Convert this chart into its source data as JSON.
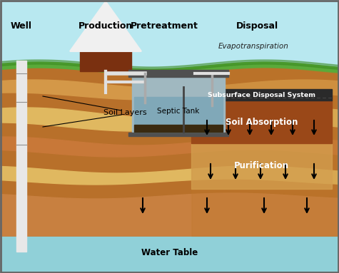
{
  "bg_sky": "#b8e8f0",
  "bg_water": "#90d0d8",
  "border_color": "#666666",
  "grass_color": "#5aaa3a",
  "grass_dark": "#3a8a20",
  "soil_base": "#b8702a",
  "soil_l1": "#c88040",
  "soil_l2": "#d49848",
  "soil_l3": "#e0b860",
  "soil_l4": "#c87838",
  "soil_l5": "#d89848",
  "disposal_soil": "#b8681a",
  "soil_absorption_color": "#9a4818",
  "purification_color": "#d4a050",
  "subsurface_header": "#2a2a2a",
  "pipe_color": "#e0e0e0",
  "tank_outer": "#505050",
  "tank_body": "#a0b8c0",
  "tank_water": "#80a8b8",
  "tank_sludge": "#3a2a10",
  "house_body": "#7a3010",
  "house_roof_fill": "#f0f0f0",
  "house_roof_edge": "#505060",
  "well_color": "#e8e8e8",
  "well_edge": "#909090",
  "labels": {
    "well": "Well",
    "production": "Production",
    "pretreatment": "Pretreatment",
    "disposal": "Disposal",
    "evapotranspiration": "Evapotranspiration",
    "subsurface": "Subsurface Disposal System",
    "soil_absorption": "Soil Absorption",
    "soil_layers": "Soil Layers",
    "purification": "Purification",
    "water_table": "Water Table",
    "septic_tank": "Septic Tank"
  }
}
